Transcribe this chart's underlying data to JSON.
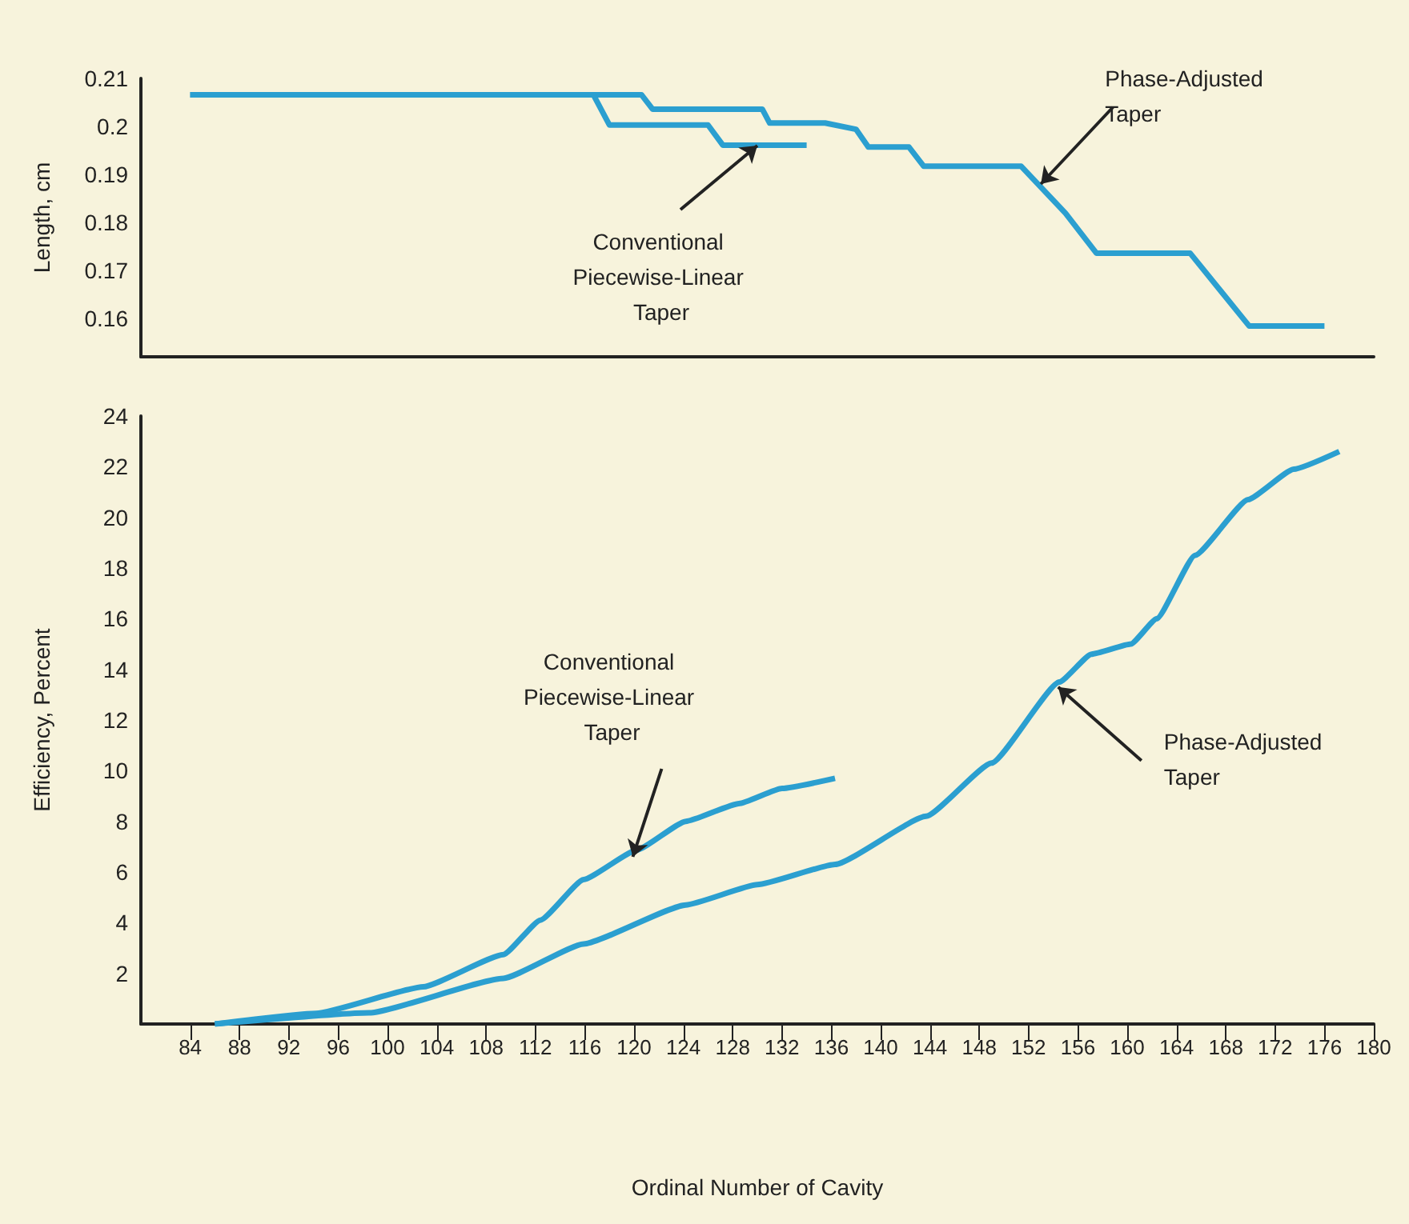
{
  "chart_data": [
    {
      "type": "line",
      "ylabel": "Length, cm",
      "xlim": [
        80,
        180
      ],
      "ylim": [
        0.152,
        0.21
      ],
      "yticks": [
        0.16,
        0.17,
        0.18,
        0.19,
        0.2,
        0.21
      ],
      "tick_labels": "y",
      "series": [
        {
          "color": "#2b9fd0",
          "x": [
            84,
            120.6,
            121.5,
            130.4,
            131,
            135.5,
            138,
            139,
            142.3,
            143.5,
            151.4,
            155,
            157.5,
            165.1,
            169.9,
            176
          ],
          "values": [
            0.2066,
            0.2066,
            0.2036,
            0.2036,
            0.2007,
            0.2007,
            0.1994,
            0.1957,
            0.1957,
            0.1917,
            0.1917,
            0.1819,
            0.1736,
            0.1736,
            0.1584,
            0.1584
          ]
        },
        {
          "color": "#2b9fd0",
          "x": [
            84,
            116.7,
            118,
            126,
            127.2,
            134
          ],
          "values": [
            0.2066,
            0.2066,
            0.2003,
            0.2003,
            0.1961,
            0.1961
          ]
        }
      ],
      "annotations": [
        {
          "text": "Conventional Piecewise-Linear Taper",
          "x": 130,
          "y": 0.196
        },
        {
          "text": "Phase-Adjusted Taper",
          "x": 153,
          "y": 0.188
        }
      ]
    },
    {
      "type": "line",
      "xlabel": "Ordinal Number of Cavity",
      "ylabel": "Efficiency, Percent",
      "xlim": [
        80,
        180
      ],
      "ylim": [
        0,
        24
      ],
      "xticks": [
        84,
        88,
        92,
        96,
        100,
        104,
        108,
        112,
        116,
        120,
        124,
        128,
        132,
        136,
        140,
        144,
        148,
        152,
        156,
        160,
        164,
        168,
        172,
        176,
        180
      ],
      "yticks": [
        2,
        4,
        6,
        8,
        10,
        12,
        14,
        16,
        18,
        20,
        22,
        24
      ],
      "series": [
        {
          "color": "#2b9fd0",
          "x": [
            86,
            94.2,
            102.9,
            109.4,
            112.4,
            115.9,
            120.2,
            124.2,
            128.5,
            132,
            136.3
          ],
          "values": [
            0,
            0.42,
            1.47,
            2.74,
            4.1,
            5.7,
            6.86,
            8.0,
            8.7,
            9.3,
            9.7
          ]
        },
        {
          "color": "#2b9fd0",
          "x": [
            86,
            98.5,
            109.4,
            115.9,
            124.2,
            130,
            136.3,
            143.7,
            149,
            154.5,
            157.1,
            160.3,
            162.4,
            165.5,
            169.8,
            173.5,
            177.2
          ],
          "values": [
            0,
            0.44,
            1.8,
            3.16,
            4.7,
            5.5,
            6.3,
            8.2,
            10.3,
            13.5,
            14.6,
            15.0,
            16.0,
            18.5,
            20.7,
            21.9,
            22.6
          ]
        }
      ],
      "annotations": [
        {
          "text": "Conventional Piecewise-Linear Taper",
          "x": 119.9,
          "y": 6.6
        },
        {
          "text": "Phase-Adjusted Taper",
          "x": 154.4,
          "y": 13.3
        }
      ]
    }
  ]
}
